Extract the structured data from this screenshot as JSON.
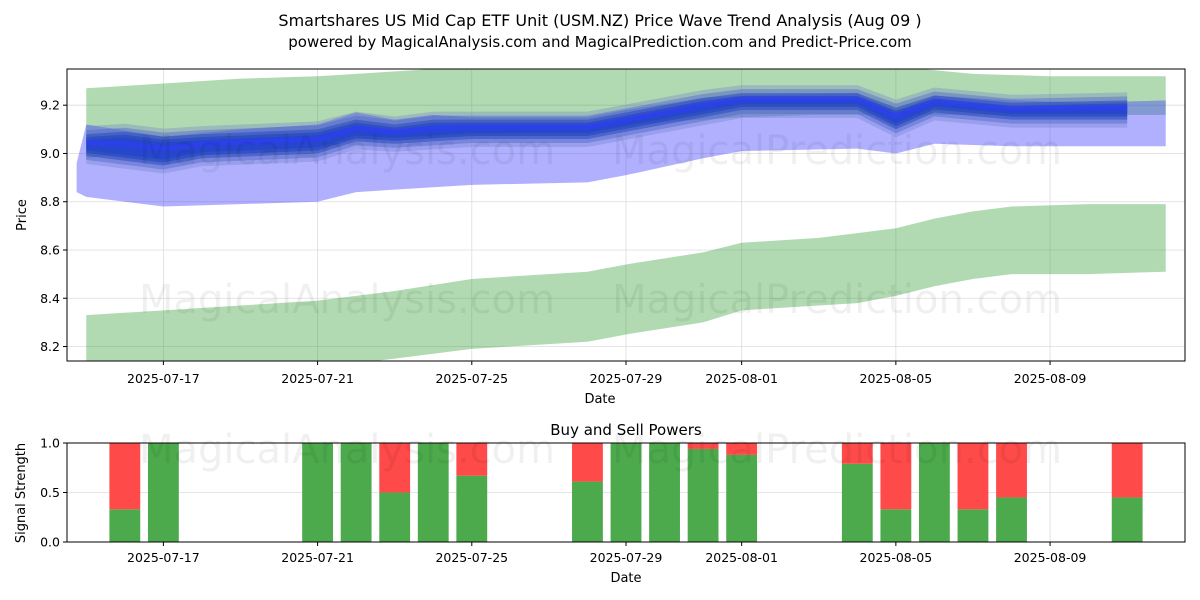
{
  "figure": {
    "title_line1": "Smartshares US Mid Cap ETF Unit (USM.NZ) Price Wave Trend Analysis (Aug 09 )",
    "title_line2": "powered by MagicalAnalysis.com and MagicalPrediction.com and Predict-Price.com",
    "watermarks": [
      "MagicalAnalysis.com",
      "MagicalPrediction.com"
    ]
  },
  "chart_data": [
    {
      "type": "area",
      "name": "price-wave-trend",
      "xlabel": "Date",
      "ylabel": "Price",
      "xlim": [
        "2025-07-14T12:00",
        "2025-08-12T12:00"
      ],
      "ylim": [
        8.14,
        9.35
      ],
      "yticks": [
        8.2,
        8.4,
        8.6,
        8.8,
        9.0,
        9.2
      ],
      "xticks": [
        "2025-07-17",
        "2025-07-21",
        "2025-07-25",
        "2025-07-29",
        "2025-08-01",
        "2025-08-05",
        "2025-08-09"
      ],
      "grid": true,
      "series": [
        {
          "name": "green-upper-band",
          "color": "#2e9a2e",
          "x": [
            "2025-07-15",
            "2025-07-17",
            "2025-07-19",
            "2025-07-21",
            "2025-07-22",
            "2025-07-24",
            "2025-07-25",
            "2025-07-28",
            "2025-07-29",
            "2025-07-31",
            "2025-08-01",
            "2025-08-03",
            "2025-08-05",
            "2025-08-07",
            "2025-08-09",
            "2025-08-11",
            "2025-08-12"
          ],
          "upper": [
            9.27,
            9.29,
            9.31,
            9.32,
            9.33,
            9.35,
            9.36,
            9.38,
            9.4,
            9.43,
            9.45,
            9.43,
            9.36,
            9.33,
            9.32,
            9.32,
            9.32
          ],
          "lower": [
            8.98,
            9.02,
            9.03,
            9.04,
            9.06,
            9.07,
            9.08,
            9.09,
            9.12,
            9.14,
            9.15,
            9.16,
            9.16,
            9.16,
            9.16,
            9.16,
            9.16
          ]
        },
        {
          "name": "green-lower-band",
          "color": "#2e9a2e",
          "x": [
            "2025-07-15",
            "2025-07-17",
            "2025-07-19",
            "2025-07-21",
            "2025-07-23",
            "2025-07-25",
            "2025-07-28",
            "2025-07-29",
            "2025-07-31",
            "2025-08-01",
            "2025-08-03",
            "2025-08-04",
            "2025-08-05",
            "2025-08-06",
            "2025-08-07",
            "2025-08-08",
            "2025-08-10",
            "2025-08-12"
          ],
          "upper": [
            8.33,
            8.35,
            8.37,
            8.39,
            8.43,
            8.48,
            8.51,
            8.54,
            8.59,
            8.63,
            8.65,
            8.67,
            8.69,
            8.73,
            8.76,
            8.78,
            8.79,
            8.79
          ],
          "lower": [
            8.06,
            8.08,
            8.1,
            8.11,
            8.15,
            8.19,
            8.22,
            8.25,
            8.3,
            8.35,
            8.37,
            8.38,
            8.41,
            8.45,
            8.48,
            8.5,
            8.5,
            8.51
          ]
        },
        {
          "name": "blue-band",
          "color": "#3a3aff",
          "x": [
            "2025-07-14T18:00",
            "2025-07-15",
            "2025-07-17",
            "2025-07-19",
            "2025-07-21",
            "2025-07-22",
            "2025-07-23",
            "2025-07-24",
            "2025-07-25",
            "2025-07-28",
            "2025-07-29",
            "2025-07-31",
            "2025-08-01",
            "2025-08-04",
            "2025-08-05",
            "2025-08-06",
            "2025-08-08",
            "2025-08-10",
            "2025-08-12"
          ],
          "upper": [
            8.96,
            9.12,
            9.07,
            9.1,
            9.12,
            9.17,
            9.14,
            9.16,
            9.15,
            9.15,
            9.18,
            9.23,
            9.24,
            9.25,
            9.17,
            9.24,
            9.22,
            9.21,
            9.22
          ],
          "lower": [
            8.84,
            8.82,
            8.78,
            8.79,
            8.8,
            8.84,
            8.85,
            8.86,
            8.87,
            8.88,
            8.91,
            8.98,
            9.01,
            9.02,
            9.0,
            9.04,
            9.03,
            9.03,
            9.03
          ]
        },
        {
          "name": "wave-core",
          "color": "#2244bb",
          "x": [
            "2025-07-15",
            "2025-07-16",
            "2025-07-17",
            "2025-07-18",
            "2025-07-21",
            "2025-07-22",
            "2025-07-23",
            "2025-07-24",
            "2025-07-25",
            "2025-07-28",
            "2025-07-29",
            "2025-07-31",
            "2025-08-01",
            "2025-08-04",
            "2025-08-05",
            "2025-08-06",
            "2025-08-08",
            "2025-08-11"
          ],
          "upper": [
            9.08,
            9.09,
            9.07,
            9.08,
            9.1,
            9.14,
            9.12,
            9.14,
            9.14,
            9.14,
            9.17,
            9.23,
            9.25,
            9.25,
            9.19,
            9.24,
            9.21,
            9.22
          ],
          "lower": [
            8.99,
            8.97,
            8.95,
            8.98,
            9.0,
            9.05,
            9.04,
            9.05,
            9.06,
            9.06,
            9.09,
            9.15,
            9.18,
            9.18,
            9.1,
            9.17,
            9.14,
            9.14
          ]
        }
      ]
    },
    {
      "type": "bar",
      "name": "buy-and-sell-powers",
      "title": "Buy and Sell Powers",
      "xlabel": "Date",
      "ylabel": "Signal Strength",
      "xlim": [
        "2025-07-14T12:00",
        "2025-08-12T12:00"
      ],
      "ylim": [
        0,
        1
      ],
      "yticks": [
        0.0,
        0.5,
        1.0
      ],
      "xticks": [
        "2025-07-17",
        "2025-07-21",
        "2025-07-25",
        "2025-07-29",
        "2025-08-01",
        "2025-08-05",
        "2025-08-09"
      ],
      "buy_color": "#4caa4c",
      "sell_color": "#ff4a4a",
      "categories": [
        "2025-07-16",
        "2025-07-17",
        "2025-07-21",
        "2025-07-22",
        "2025-07-23",
        "2025-07-24",
        "2025-07-25",
        "2025-07-28",
        "2025-07-29",
        "2025-07-30",
        "2025-07-31",
        "2025-08-01",
        "2025-08-04",
        "2025-08-05",
        "2025-08-06",
        "2025-08-07",
        "2025-08-08",
        "2025-08-11"
      ],
      "buy": [
        0.33,
        1.0,
        1.0,
        1.0,
        0.5,
        1.0,
        0.67,
        0.61,
        1.0,
        1.0,
        0.94,
        0.88,
        0.79,
        0.33,
        1.0,
        0.33,
        0.45,
        0.45
      ],
      "sell": [
        0.67,
        0.0,
        0.0,
        0.0,
        0.5,
        0.0,
        0.33,
        0.39,
        0.0,
        0.0,
        0.06,
        0.12,
        0.21,
        0.67,
        0.0,
        0.67,
        0.55,
        0.55
      ]
    }
  ]
}
